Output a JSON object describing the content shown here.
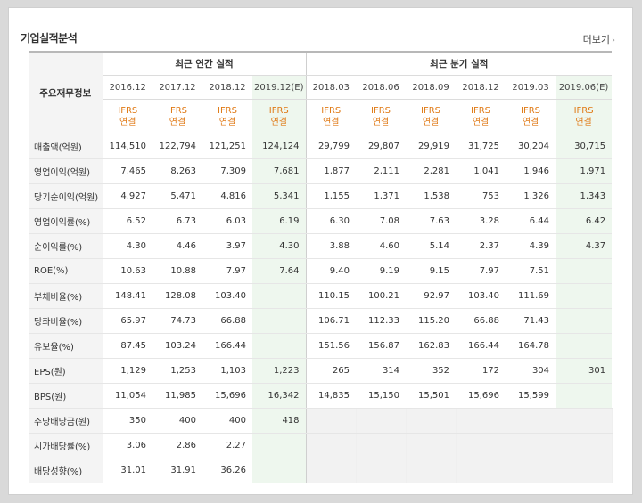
{
  "section_title": "기업실적분석",
  "more_label": "더보기",
  "more_arrow": "›",
  "row_header": "주요재무정보",
  "groups": {
    "annual": "최근 연간 실적",
    "quarterly": "최근 분기 실적"
  },
  "periods": [
    "2016.12",
    "2017.12",
    "2018.12",
    "2019.12(E)",
    "2018.03",
    "2018.06",
    "2018.09",
    "2018.12",
    "2019.03",
    "2019.06(E)"
  ],
  "ifrs_line1": "IFRS",
  "ifrs_line2": "연결",
  "rows": [
    {
      "label": "매출액(억원)",
      "values": [
        "114,510",
        "122,794",
        "121,251",
        "124,124",
        "29,799",
        "29,807",
        "29,919",
        "31,725",
        "30,204",
        "30,715"
      ]
    },
    {
      "label": "영업이익(억원)",
      "values": [
        "7,465",
        "8,263",
        "7,309",
        "7,681",
        "1,877",
        "2,111",
        "2,281",
        "1,041",
        "1,946",
        "1,971"
      ]
    },
    {
      "label": "당기순이익(억원)",
      "values": [
        "4,927",
        "5,471",
        "4,816",
        "5,341",
        "1,155",
        "1,371",
        "1,538",
        "753",
        "1,326",
        "1,343"
      ]
    },
    {
      "label": "영업이익률(%)",
      "values": [
        "6.52",
        "6.73",
        "6.03",
        "6.19",
        "6.30",
        "7.08",
        "7.63",
        "3.28",
        "6.44",
        "6.42"
      ]
    },
    {
      "label": "순이익률(%)",
      "values": [
        "4.30",
        "4.46",
        "3.97",
        "4.30",
        "3.88",
        "4.60",
        "5.14",
        "2.37",
        "4.39",
        "4.37"
      ]
    },
    {
      "label": "ROE(%)",
      "values": [
        "10.63",
        "10.88",
        "7.97",
        "7.64",
        "9.40",
        "9.19",
        "9.15",
        "7.97",
        "7.51",
        ""
      ]
    },
    {
      "label": "부채비율(%)",
      "values": [
        "148.41",
        "128.08",
        "103.40",
        "",
        "110.15",
        "100.21",
        "92.97",
        "103.40",
        "111.69",
        ""
      ]
    },
    {
      "label": "당좌비율(%)",
      "values": [
        "65.97",
        "74.73",
        "66.88",
        "",
        "106.71",
        "112.33",
        "115.20",
        "66.88",
        "71.43",
        ""
      ]
    },
    {
      "label": "유보율(%)",
      "values": [
        "87.45",
        "103.24",
        "166.44",
        "",
        "151.56",
        "156.87",
        "162.83",
        "166.44",
        "164.78",
        ""
      ]
    },
    {
      "label": "EPS(원)",
      "values": [
        "1,129",
        "1,253",
        "1,103",
        "1,223",
        "265",
        "314",
        "352",
        "172",
        "304",
        "301"
      ]
    },
    {
      "label": "BPS(원)",
      "values": [
        "11,054",
        "11,985",
        "15,696",
        "16,342",
        "14,835",
        "15,150",
        "15,501",
        "15,696",
        "15,599",
        ""
      ]
    },
    {
      "label": "주당배당금(원)",
      "values": [
        "350",
        "400",
        "400",
        "418",
        "",
        "",
        "",
        "",
        "",
        ""
      ]
    },
    {
      "label": "시가배당률(%)",
      "values": [
        "3.06",
        "2.86",
        "2.27",
        "",
        "",
        "",
        "",
        "",
        "",
        ""
      ]
    },
    {
      "label": "배당성향(%)",
      "values": [
        "31.01",
        "31.91",
        "36.26",
        "",
        "",
        "",
        "",
        "",
        "",
        ""
      ]
    }
  ],
  "colors": {
    "accent_orange": "#e07a16",
    "estimate_bg": "#eef7ee",
    "estimate_text": "#1a7a1a"
  }
}
